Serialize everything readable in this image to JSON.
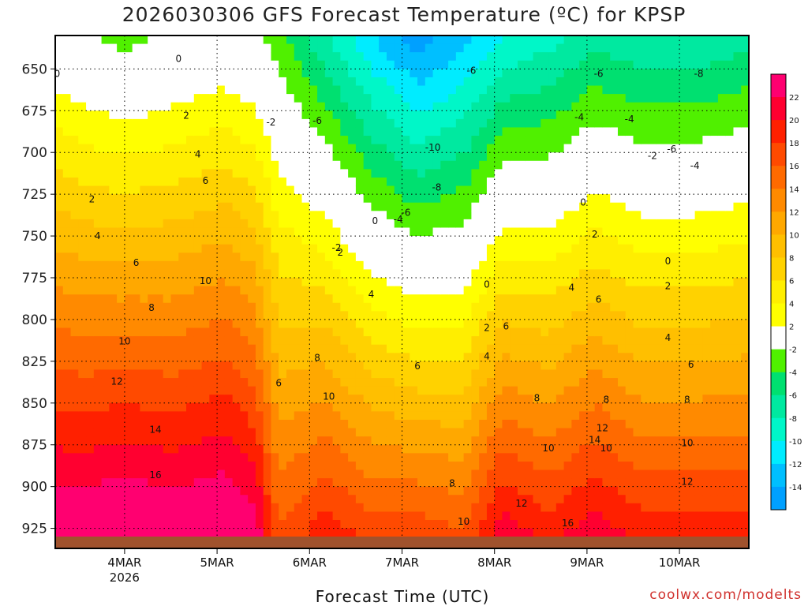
{
  "title": "2026030306 GFS Forecast Temperature (ºC) for KPSP",
  "x_axis_title": "Forecast Time (UTC)",
  "credit": "coolwx.com/modelts",
  "chart_data": {
    "type": "heatmap",
    "title": "2026030306 GFS Forecast Temperature (ºC) for KPSP",
    "xlabel": "Forecast Time (UTC)",
    "ylabel": "",
    "y_ticks": [
      650,
      675,
      700,
      725,
      750,
      775,
      800,
      825,
      850,
      875,
      900,
      925
    ],
    "y_range_hPa": [
      630,
      937
    ],
    "x_range_hours": [
      0,
      180
    ],
    "x_ticks": [
      {
        "label": "4MAR",
        "sub": "2026",
        "hour": 18
      },
      {
        "label": "5MAR",
        "sub": "",
        "hour": 42
      },
      {
        "label": "6MAR",
        "sub": "",
        "hour": 66
      },
      {
        "label": "7MAR",
        "sub": "",
        "hour": 90
      },
      {
        "label": "8MAR",
        "sub": "",
        "hour": 114
      },
      {
        "label": "9MAR",
        "sub": "",
        "hour": 138
      },
      {
        "label": "10MAR",
        "sub": "",
        "hour": 162
      }
    ],
    "colorbar": {
      "levels": [
        22,
        20,
        18,
        16,
        14,
        12,
        10,
        8,
        6,
        4,
        2,
        -2,
        -4,
        -6,
        -8,
        -10,
        -12,
        -14
      ],
      "colors": [
        "#ff0070",
        "#ff0030",
        "#ff2000",
        "#ff4a00",
        "#ff6a00",
        "#ff8a00",
        "#ffa800",
        "#ffbf00",
        "#ffd200",
        "#ffee00",
        "#ffff00",
        "#ffffff",
        "#50f000",
        "#00e070",
        "#00e9a0",
        "#00f7c8",
        "#00ecff",
        "#00bfff",
        "#00a0ff"
      ]
    },
    "series": [
      {
        "hour": 0,
        "t650": 1,
        "t925": 24
      },
      {
        "hour": 8,
        "t650": 0,
        "t925": 24
      },
      {
        "hour": 18,
        "t650": -1,
        "t925": 25
      },
      {
        "hour": 30,
        "t650": 0,
        "t925": 24
      },
      {
        "hour": 44,
        "t650": 1,
        "t925": 25
      },
      {
        "hour": 52,
        "t650": 0,
        "t925": 23
      },
      {
        "hour": 58,
        "t650": -2,
        "t925": 16
      },
      {
        "hour": 70,
        "t650": -6,
        "t925": 19
      },
      {
        "hour": 82,
        "t650": -10,
        "t925": 17
      },
      {
        "hour": 94,
        "t650": -13,
        "t925": 17
      },
      {
        "hour": 106,
        "t650": -11,
        "t925": 16
      },
      {
        "hour": 116,
        "t650": -8,
        "t925": 21
      },
      {
        "hour": 128,
        "t650": -7,
        "t925": 19
      },
      {
        "hour": 140,
        "t650": -5,
        "t925": 21
      },
      {
        "hour": 152,
        "t650": -6,
        "t925": 19
      },
      {
        "hour": 166,
        "t650": -6,
        "t925": 19
      },
      {
        "hour": 180,
        "t650": -5,
        "t925": 19
      }
    ],
    "contour_labels": [
      {
        "text": "0",
        "hour": 0.5,
        "p": 653
      },
      {
        "text": "0",
        "hour": 32,
        "p": 644
      },
      {
        "text": "-2",
        "hour": 56,
        "p": 682
      },
      {
        "text": "-6",
        "hour": 68,
        "p": 681
      },
      {
        "text": "-10",
        "hour": 98,
        "p": 697
      },
      {
        "text": "-8",
        "hour": 99,
        "p": 721
      },
      {
        "text": "-6",
        "hour": 108,
        "p": 651
      },
      {
        "text": "-4",
        "hour": 89,
        "p": 740
      },
      {
        "text": "-6",
        "hour": 91,
        "p": 736
      },
      {
        "text": "-4",
        "hour": 136,
        "p": 679
      },
      {
        "text": "-2",
        "hour": 155,
        "p": 702
      },
      {
        "text": "-8",
        "hour": 167,
        "p": 653
      },
      {
        "text": "-6",
        "hour": 160,
        "p": 698
      },
      {
        "text": "-4",
        "hour": 166,
        "p": 708
      },
      {
        "text": "-2",
        "hour": 73,
        "p": 757
      },
      {
        "text": "2",
        "hour": 9.5,
        "p": 728
      },
      {
        "text": "4",
        "hour": 11,
        "p": 750
      },
      {
        "text": "6",
        "hour": 21,
        "p": 766
      },
      {
        "text": "8",
        "hour": 25,
        "p": 793
      },
      {
        "text": "10",
        "hour": 18,
        "p": 813
      },
      {
        "text": "12",
        "hour": 16,
        "p": 837
      },
      {
        "text": "14",
        "hour": 26,
        "p": 866
      },
      {
        "text": "16",
        "hour": 26,
        "p": 893
      },
      {
        "text": "2",
        "hour": 34,
        "p": 678
      },
      {
        "text": "4",
        "hour": 37,
        "p": 701
      },
      {
        "text": "6",
        "hour": 39,
        "p": 717
      },
      {
        "text": "10",
        "hour": 39,
        "p": 777
      },
      {
        "text": "0",
        "hour": 83,
        "p": 741
      },
      {
        "text": "2",
        "hour": 74,
        "p": 760
      },
      {
        "text": "4",
        "hour": 82,
        "p": 785
      },
      {
        "text": "6",
        "hour": 58,
        "p": 838
      },
      {
        "text": "8",
        "hour": 68,
        "p": 823
      },
      {
        "text": "10",
        "hour": 71,
        "p": 846
      },
      {
        "text": "6",
        "hour": 94,
        "p": 828
      },
      {
        "text": "8",
        "hour": 103,
        "p": 898
      },
      {
        "text": "10",
        "hour": 106,
        "p": 921
      },
      {
        "text": "12",
        "hour": 121,
        "p": 910
      },
      {
        "text": "0",
        "hour": 112,
        "p": 779
      },
      {
        "text": "2",
        "hour": 112,
        "p": 805
      },
      {
        "text": "4",
        "hour": 112,
        "p": 822
      },
      {
        "text": "6",
        "hour": 117,
        "p": 804
      },
      {
        "text": "8",
        "hour": 125,
        "p": 847
      },
      {
        "text": "10",
        "hour": 128,
        "p": 877
      },
      {
        "text": "16",
        "hour": 133,
        "p": 922
      },
      {
        "text": "14",
        "hour": 140,
        "p": 872
      },
      {
        "text": "12",
        "hour": 142,
        "p": 865
      },
      {
        "text": "10",
        "hour": 143,
        "p": 877
      },
      {
        "text": "8",
        "hour": 143,
        "p": 848
      },
      {
        "text": "6",
        "hour": 141,
        "p": 788
      },
      {
        "text": "4",
        "hour": 134,
        "p": 781
      },
      {
        "text": "2",
        "hour": 140,
        "p": 749
      },
      {
        "text": "0",
        "hour": 137,
        "p": 730
      },
      {
        "text": "-6",
        "hour": 141,
        "p": 653
      },
      {
        "text": "-4",
        "hour": 149,
        "p": 680
      },
      {
        "text": "0",
        "hour": 159,
        "p": 765
      },
      {
        "text": "2",
        "hour": 159,
        "p": 780
      },
      {
        "text": "4",
        "hour": 159,
        "p": 811
      },
      {
        "text": "6",
        "hour": 165,
        "p": 827
      },
      {
        "text": "8",
        "hour": 164,
        "p": 848
      },
      {
        "text": "10",
        "hour": 164,
        "p": 874
      },
      {
        "text": "12",
        "hour": 164,
        "p": 897
      }
    ]
  }
}
